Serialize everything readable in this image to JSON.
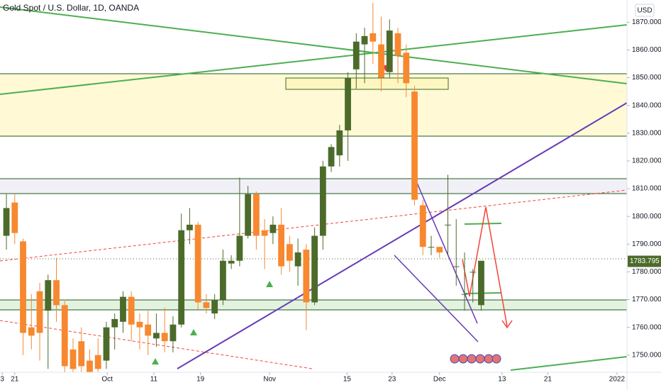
{
  "chart_data": {
    "type": "candlestick",
    "title": "Gold Spot / U.S. Dollar, 1D, OANDA",
    "currency": "USD",
    "open": [
      1793,
      1805,
      1791,
      1760,
      1773,
      1766,
      1777,
      1768,
      1752,
      1755,
      1748,
      1750,
      1748,
      1760,
      1762,
      1771,
      1762,
      1761,
      1756,
      1758,
      1755,
      1761,
      1795,
      1797,
      1769,
      1765,
      1770,
      1783,
      1784,
      1793,
      1808,
      1795,
      1794,
      1797,
      1790,
      1782,
      1788,
      1769,
      1793,
      1818,
      1822,
      1831,
      1853,
      1862,
      1866,
      1862,
      1852,
      1866,
      1859,
      1845,
      1804,
      1789,
      1789,
      1797,
      1782,
      1772,
      1780,
      1768
    ],
    "high": [
      1808,
      1808,
      1792,
      1772,
      1776,
      1779,
      1785,
      1770,
      1756,
      1760,
      1752,
      1756,
      1762,
      1765,
      1773,
      1773,
      1765,
      1766,
      1765,
      1767,
      1764,
      1801,
      1803,
      1798,
      1772,
      1772,
      1788,
      1786,
      1814,
      1811,
      1809,
      1799,
      1800,
      1803,
      1793,
      1792,
      1790,
      1796,
      1820,
      1826,
      1833,
      1852,
      1866,
      1868,
      1877,
      1872,
      1871,
      1868,
      1862,
      1847,
      1806,
      1793,
      1789,
      1815,
      1799,
      1787,
      1781,
      1784
    ],
    "low": [
      1788,
      1790,
      1750,
      1752,
      1748,
      1745,
      1762,
      1740,
      1742,
      1743,
      1740,
      1744,
      1745,
      1752,
      1758,
      1755,
      1752,
      1750,
      1753,
      1751,
      1751,
      1760,
      1790,
      1766,
      1765,
      1763,
      1768,
      1781,
      1782,
      1792,
      1788,
      1781,
      1790,
      1779,
      1780,
      1775,
      1759,
      1768,
      1788,
      1816,
      1818,
      1820,
      1846,
      1848,
      1855,
      1845,
      1850,
      1848,
      1843,
      1804,
      1786,
      1786,
      1785,
      1786,
      1775,
      1766,
      1769,
      1766
    ],
    "close": [
      1803,
      1794,
      1758,
      1757,
      1758,
      1777,
      1768,
      1746,
      1745,
      1746,
      1742,
      1745,
      1760,
      1763,
      1771,
      1761,
      1760,
      1757,
      1758,
      1755,
      1761,
      1795,
      1797,
      1769,
      1767,
      1770,
      1784,
      1784,
      1793,
      1808,
      1793,
      1793,
      1797,
      1782,
      1784,
      1787,
      1769,
      1793,
      1818,
      1825,
      1831,
      1850,
      1863,
      1865,
      1863,
      1850,
      1867,
      1858,
      1848,
      1806,
      1789,
      1789,
      1787,
      1797,
      1782,
      1772,
      1780,
      1784
    ],
    "up_color": "#4c6b2b",
    "down_color": "#f7882f",
    "last_price": 1783.795,
    "xlim": [
      -0.77,
      74.5
    ],
    "xticks": [
      {
        "value": -0.5,
        "label": "3"
      },
      {
        "value": 1.0,
        "label": "21"
      },
      {
        "value": 12.1,
        "label": "Oct"
      },
      {
        "value": 17.7,
        "label": "11"
      },
      {
        "value": 23.3,
        "label": "19"
      },
      {
        "value": 31.6,
        "label": "Nov"
      },
      {
        "value": 40.9,
        "label": "15"
      },
      {
        "value": 46.3,
        "label": "23"
      },
      {
        "value": 52.0,
        "label": "Dec"
      },
      {
        "value": 59.5,
        "label": "13"
      },
      {
        "value": 65.0,
        "label": "21"
      },
      {
        "value": 73.3,
        "label": "2022"
      }
    ],
    "ylim": [
      1743.8,
      1878
    ],
    "yticks": [
      {
        "value": 1750,
        "label": "1750.000"
      },
      {
        "value": 1760,
        "label": "1760.000"
      },
      {
        "value": 1770,
        "label": "1770.000"
      },
      {
        "value": 1780,
        "label": "1780.000"
      },
      {
        "value": 1790,
        "label": "1790.000"
      },
      {
        "value": 1800,
        "label": "1800.000"
      },
      {
        "value": 1810,
        "label": "1810.000"
      },
      {
        "value": 1820,
        "label": "1820.000"
      },
      {
        "value": 1830,
        "label": "1830.000"
      },
      {
        "value": 1840,
        "label": "1840.000"
      },
      {
        "value": 1850,
        "label": "1850.000"
      },
      {
        "value": 1860,
        "label": "1860.000"
      },
      {
        "value": 1870,
        "label": "1870.000"
      }
    ]
  }
}
